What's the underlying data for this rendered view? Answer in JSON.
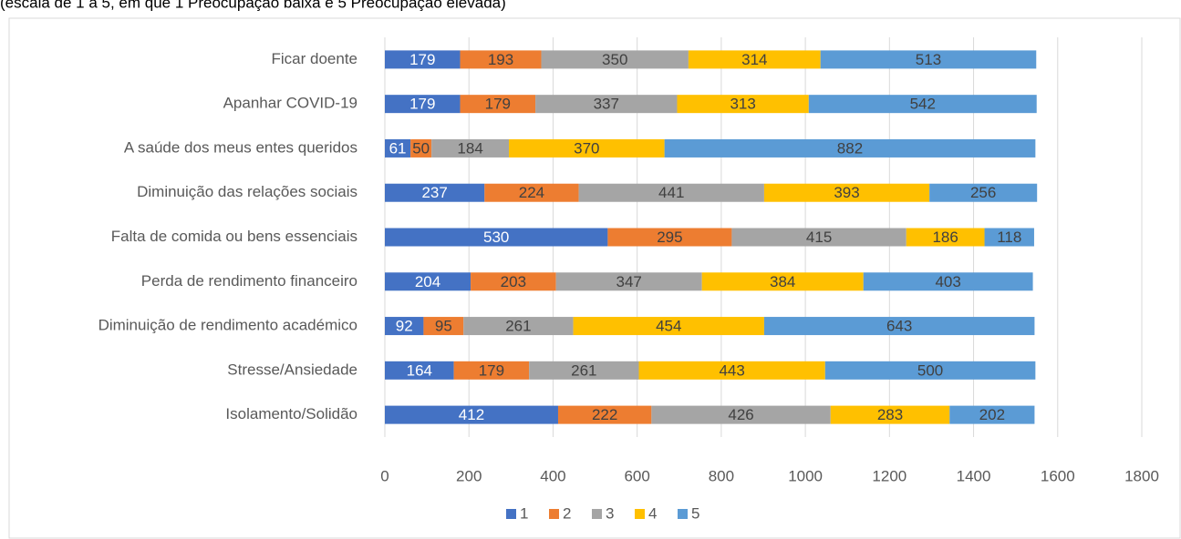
{
  "chart_data": {
    "type": "bar",
    "orientation": "horizontal",
    "stacked": true,
    "subtitle": "(escala de 1 a 5, em que 1 Preocupação baixa e 5 Preocupação elevada)",
    "categories": [
      "Ficar doente",
      "Apanhar COVID-19",
      "A saúde dos meus entes queridos",
      "Diminuição das relações sociais",
      "Falta de comida ou bens essenciais",
      "Perda de rendimento financeiro",
      "Diminuição de rendimento académico",
      "Stresse/Ansiedade",
      "Isolamento/Solidão"
    ],
    "series": [
      {
        "name": "1",
        "color": "#4472c4",
        "values": [
          179,
          179,
          61,
          237,
          530,
          204,
          92,
          164,
          412
        ]
      },
      {
        "name": "2",
        "color": "#ed7d31",
        "values": [
          193,
          179,
          50,
          224,
          295,
          203,
          95,
          179,
          222
        ]
      },
      {
        "name": "3",
        "color": "#a5a5a5",
        "values": [
          350,
          337,
          184,
          441,
          415,
          347,
          261,
          261,
          426
        ]
      },
      {
        "name": "4",
        "color": "#ffc000",
        "values": [
          314,
          313,
          370,
          393,
          186,
          384,
          454,
          443,
          283
        ]
      },
      {
        "name": "5",
        "color": "#5b9bd5",
        "values": [
          513,
          542,
          882,
          256,
          118,
          403,
          643,
          500,
          202
        ]
      }
    ],
    "xlim": [
      0,
      1800
    ],
    "xticks": [
      0,
      200,
      400,
      600,
      800,
      1000,
      1200,
      1400,
      1600,
      1800
    ],
    "grid": true,
    "legend": "bottom"
  }
}
